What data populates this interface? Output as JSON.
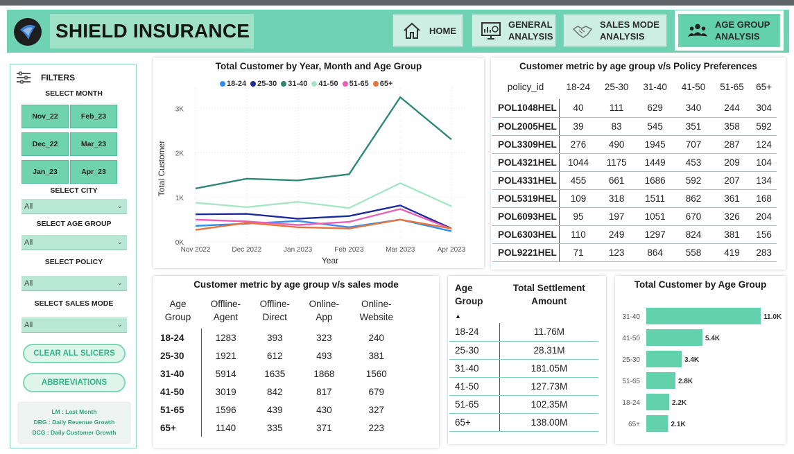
{
  "header": {
    "title": "SHIELD INSURANCE"
  },
  "nav": [
    {
      "label1": "HOME",
      "label2": "",
      "icon": "home-icon"
    },
    {
      "label1": "GENERAL",
      "label2": "ANALYSIS",
      "icon": "analytics-icon"
    },
    {
      "label1": "SALES MODE",
      "label2": "ANALYSIS",
      "icon": "handshake-icon"
    },
    {
      "label1": "AGE GROUP",
      "label2": "ANALYSIS",
      "icon": "people-icon"
    }
  ],
  "filters": {
    "heading": "FILTERS",
    "month_label": "SELECT MONTH",
    "months": [
      "Nov_22",
      "Feb_23",
      "Dec_22",
      "Mar_23",
      "Jan_23",
      "Apr_23"
    ],
    "city_label": "SELECT CITY",
    "age_label": "SELECT  AGE GROUP",
    "policy_label": "SELECT POLICY",
    "mode_label": "SELECT SALES MODE",
    "city_value": "All",
    "age_value": "All",
    "policy_value": "All",
    "mode_value": "All",
    "clear_button": "CLEAR ALL SLICERS",
    "abbrev_button": "ABBREVIATIONS",
    "abbreviations": [
      "LM : Last Month",
      "DRG : Daily Revenue Growth",
      "DCG : Daily Customer Growth"
    ]
  },
  "line_panel": {
    "title": "Total Customer by Year, Month and Age Group"
  },
  "chart_data": {
    "type": "line",
    "title": "Total Customer by Year, Month and Age Group",
    "xlabel": "Year",
    "ylabel": "Total Customer",
    "x": [
      "Nov 2022",
      "Dec 2022",
      "Jan 2023",
      "Feb 2023",
      "Mar 2023",
      "Apr 2023"
    ],
    "yticks": [
      "0K",
      "1K",
      "2K",
      "3K"
    ],
    "ylim": [
      0,
      3300
    ],
    "grid": true,
    "legend_position": "top",
    "series": [
      {
        "name": "18-24",
        "color": "#2f8ff0",
        "values": [
          360,
          410,
          470,
          330,
          500,
          240
        ]
      },
      {
        "name": "25-30",
        "color": "#1a2a9a",
        "values": [
          620,
          630,
          520,
          580,
          820,
          300
        ]
      },
      {
        "name": "31-40",
        "color": "#2e8878",
        "values": [
          1200,
          1420,
          1380,
          1520,
          3250,
          2300
        ]
      },
      {
        "name": "41-50",
        "color": "#a8e6c3",
        "values": [
          880,
          780,
          900,
          760,
          1320,
          800
        ]
      },
      {
        "name": "51-65",
        "color": "#e860b8",
        "values": [
          500,
          460,
          380,
          450,
          740,
          290
        ]
      },
      {
        "name": "65+",
        "color": "#e8743b",
        "values": [
          270,
          430,
          330,
          300,
          500,
          300
        ]
      }
    ]
  },
  "policy_table": {
    "title": "Customer metric by age group v/s Policy Preferences",
    "headers": [
      "policy_id",
      "18-24",
      "25-30",
      "31-40",
      "41-50",
      "51-65",
      "65+"
    ],
    "rows": [
      [
        "POL1048HEL",
        "40",
        "111",
        "629",
        "340",
        "244",
        "304"
      ],
      [
        "POL2005HEL",
        "39",
        "83",
        "545",
        "351",
        "358",
        "592"
      ],
      [
        "POL3309HEL",
        "276",
        "490",
        "1945",
        "707",
        "287",
        "124"
      ],
      [
        "POL4321HEL",
        "1044",
        "1175",
        "1449",
        "453",
        "209",
        "104"
      ],
      [
        "POL4331HEL",
        "455",
        "661",
        "1686",
        "592",
        "207",
        "134"
      ],
      [
        "POL5319HEL",
        "109",
        "318",
        "1511",
        "862",
        "361",
        "168"
      ],
      [
        "POL6093HEL",
        "95",
        "197",
        "1051",
        "670",
        "326",
        "204"
      ],
      [
        "POL6303HEL",
        "110",
        "249",
        "1297",
        "824",
        "381",
        "156"
      ],
      [
        "POL9221HEL",
        "71",
        "123",
        "864",
        "558",
        "419",
        "283"
      ]
    ]
  },
  "sales_table": {
    "title": "Customer metric by age group v/s sales mode",
    "headers": [
      [
        "Age",
        "Group"
      ],
      [
        "Offline-",
        "Agent"
      ],
      [
        "Offline-",
        "Direct"
      ],
      [
        "Online-",
        "App"
      ],
      [
        "Online-",
        "Website"
      ]
    ],
    "rows": [
      [
        "18-24",
        "1283",
        "393",
        "323",
        "240"
      ],
      [
        "25-30",
        "1921",
        "612",
        "493",
        "381"
      ],
      [
        "31-40",
        "5914",
        "1635",
        "1868",
        "1560"
      ],
      [
        "41-50",
        "3019",
        "842",
        "817",
        "679"
      ],
      [
        "51-65",
        "1596",
        "439",
        "430",
        "327"
      ],
      [
        "65+",
        "1140",
        "335",
        "371",
        "223"
      ]
    ]
  },
  "settlement_table": {
    "headers": [
      "Age Group",
      "Total Settlement Amount"
    ],
    "sort_indicator": "▲",
    "rows": [
      [
        "18-24",
        "11.76M"
      ],
      [
        "25-30",
        "28.31M"
      ],
      [
        "31-40",
        "181.05M"
      ],
      [
        "41-50",
        "127.73M"
      ],
      [
        "51-65",
        "102.35M"
      ],
      [
        "65+",
        "138.00M"
      ]
    ]
  },
  "bar_panel": {
    "title": "Total Customer by Age Group",
    "color": "#62d1ac",
    "bars": [
      {
        "label": "31-40",
        "value": 11000,
        "text": "11.0K"
      },
      {
        "label": "41-50",
        "value": 5400,
        "text": "5.4K"
      },
      {
        "label": "25-30",
        "value": 3400,
        "text": "3.4K"
      },
      {
        "label": "51-65",
        "value": 2800,
        "text": "2.8K"
      },
      {
        "label": "18-24",
        "value": 2200,
        "text": "2.2K"
      },
      {
        "label": "65+",
        "value": 2100,
        "text": "2.1K"
      }
    ]
  }
}
